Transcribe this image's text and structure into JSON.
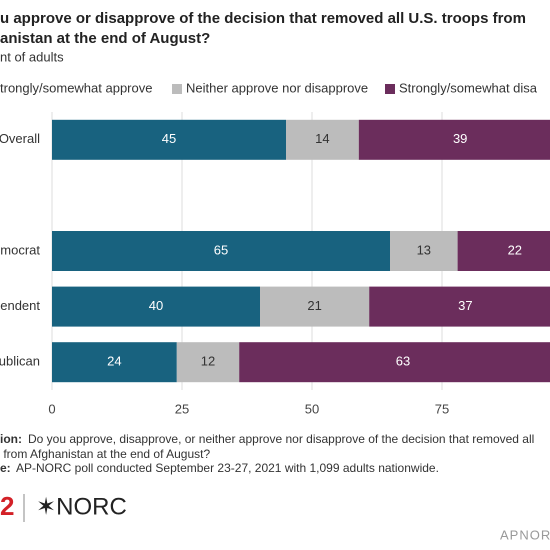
{
  "chart_data": {
    "type": "stacked-bar-horizontal",
    "title_lines": [
      "u approve or disapprove of the decision that removed all U.S. troops from",
      "anistan at the end of August?"
    ],
    "subtitle": "nt of adults",
    "categories": [
      "Overall",
      null,
      "mocrat",
      "endent",
      "ublican"
    ],
    "series": [
      {
        "name": "trongly/somewhat approve",
        "color": "#18627f",
        "values": [
          45,
          null,
          65,
          40,
          24
        ]
      },
      {
        "name": "Neither approve nor disapprove",
        "color": "#bcbcbc",
        "values": [
          14,
          null,
          13,
          21,
          12
        ]
      },
      {
        "name": "Strongly/somewhat disa",
        "color": "#6b2d5c",
        "values": [
          39,
          null,
          22,
          37,
          63
        ]
      }
    ],
    "xlim": [
      0,
      100
    ],
    "xticks": [
      0,
      25,
      50,
      75
    ],
    "grid": true,
    "footnote": {
      "question_label": "ion:",
      "question_lines": [
        "Do you approve, disapprove, or neither approve nor disapprove of the decision that removed all",
        " from Afghanistan at the end of August?"
      ],
      "source_label": "e:",
      "source": "AP-NORC poll conducted September 23-27, 2021 with 1,099 adults nationwide."
    },
    "logos": {
      "ap": "2",
      "norc": "✶NORC",
      "site": "APNOR"
    }
  }
}
